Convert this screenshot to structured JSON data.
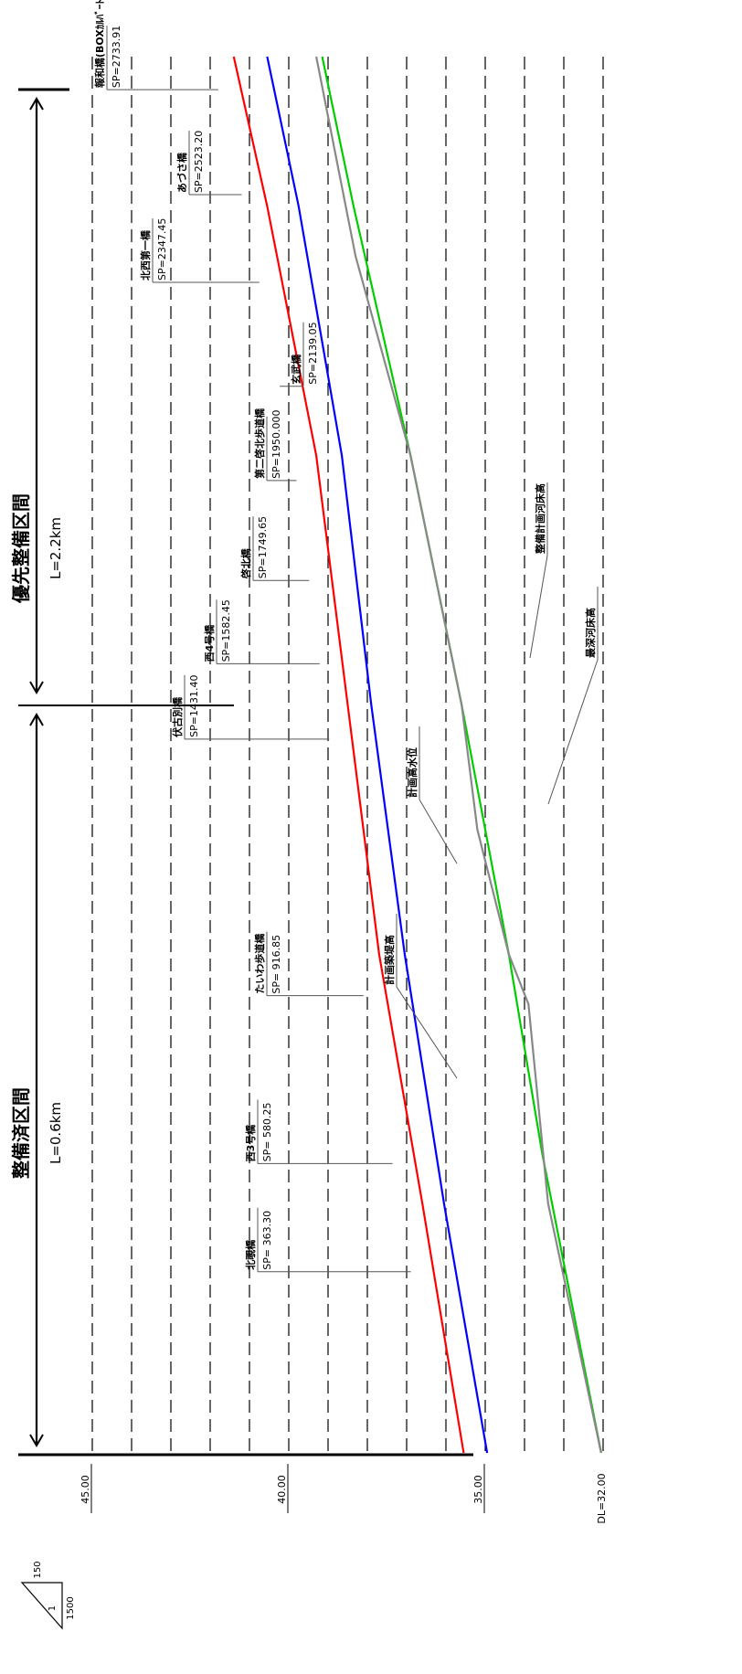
{
  "chart_data": {
    "type": "line",
    "orientation": "rotated-90-clockwise",
    "datum_label": "DL=32.00",
    "y_ticks": [
      "45.00",
      "40.00",
      "35.00"
    ],
    "y_range": [
      32.0,
      45.0
    ],
    "x_range": [
      0,
      2800
    ],
    "scale": {
      "vertical": "1",
      "vertical_scale": "150",
      "horizontal_scale": "1500"
    },
    "sections": [
      {
        "name": "整備済区間",
        "length": "L=0.6km",
        "color": "#000000"
      },
      {
        "name": "優先整備区間",
        "length": "L=2.2km",
        "color": "#ff0000"
      }
    ],
    "bridges": [
      {
        "name": "北覗橋",
        "sp": "SP= 363.30",
        "x": 363.3
      },
      {
        "name": "西3号橋",
        "sp": "SP= 580.25",
        "x": 580.25
      },
      {
        "name": "たいわ歩道橋",
        "sp": "SP= 916.85",
        "x": 916.85
      },
      {
        "name": "伏古別橋",
        "sp": "SP=1431.40",
        "x": 1431.4
      },
      {
        "name": "西4号橋",
        "sp": "SP=1582.45",
        "x": 1582.45
      },
      {
        "name": "啓北橋",
        "sp": "SP=1749.65",
        "x": 1749.65
      },
      {
        "name": "第二啓北歩道橋",
        "sp": "SP=1950.000",
        "x": 1950.0
      },
      {
        "name": "玄武橋",
        "sp": "SP=2139.05",
        "x": 2139.05
      },
      {
        "name": "北西第一橋",
        "sp": "SP=2347.45",
        "x": 2347.45
      },
      {
        "name": "あづさ橋",
        "sp": "SP=2523.20",
        "x": 2523.2
      },
      {
        "name": "報和橋(BOXｶﾙﾊﾞｰﾄ)",
        "sp": "SP=2733.91",
        "x": 2733.91
      }
    ],
    "series": [
      {
        "name": "計画築堤高",
        "color": "#ff0000",
        "x": [
          0,
          500,
          1000,
          1500,
          2000,
          2500,
          2800
        ],
        "y": [
          35.55,
          36.6,
          37.7,
          38.5,
          39.3,
          40.55,
          41.4
        ]
      },
      {
        "name": "計画高水位",
        "color": "#0000ff",
        "x": [
          0,
          500,
          1000,
          1500,
          2000,
          2500,
          2800
        ],
        "y": [
          34.95,
          36.05,
          37.05,
          37.9,
          38.65,
          39.75,
          40.55
        ]
      },
      {
        "name": "整備計画河床高",
        "color": "#00cc00",
        "x": [
          0,
          600,
          1000,
          1500,
          2000,
          2500,
          2800
        ],
        "y": [
          32.05,
          33.55,
          34.4,
          35.6,
          36.9,
          38.35,
          39.15
        ]
      },
      {
        "name": "最深河床高",
        "color": "#888888",
        "x": [
          0,
          500,
          900,
          1000,
          1250,
          1500,
          2000,
          2400,
          2800
        ],
        "y": [
          32.05,
          33.4,
          33.9,
          34.4,
          35.2,
          35.6,
          36.9,
          38.3,
          39.3
        ]
      }
    ]
  }
}
